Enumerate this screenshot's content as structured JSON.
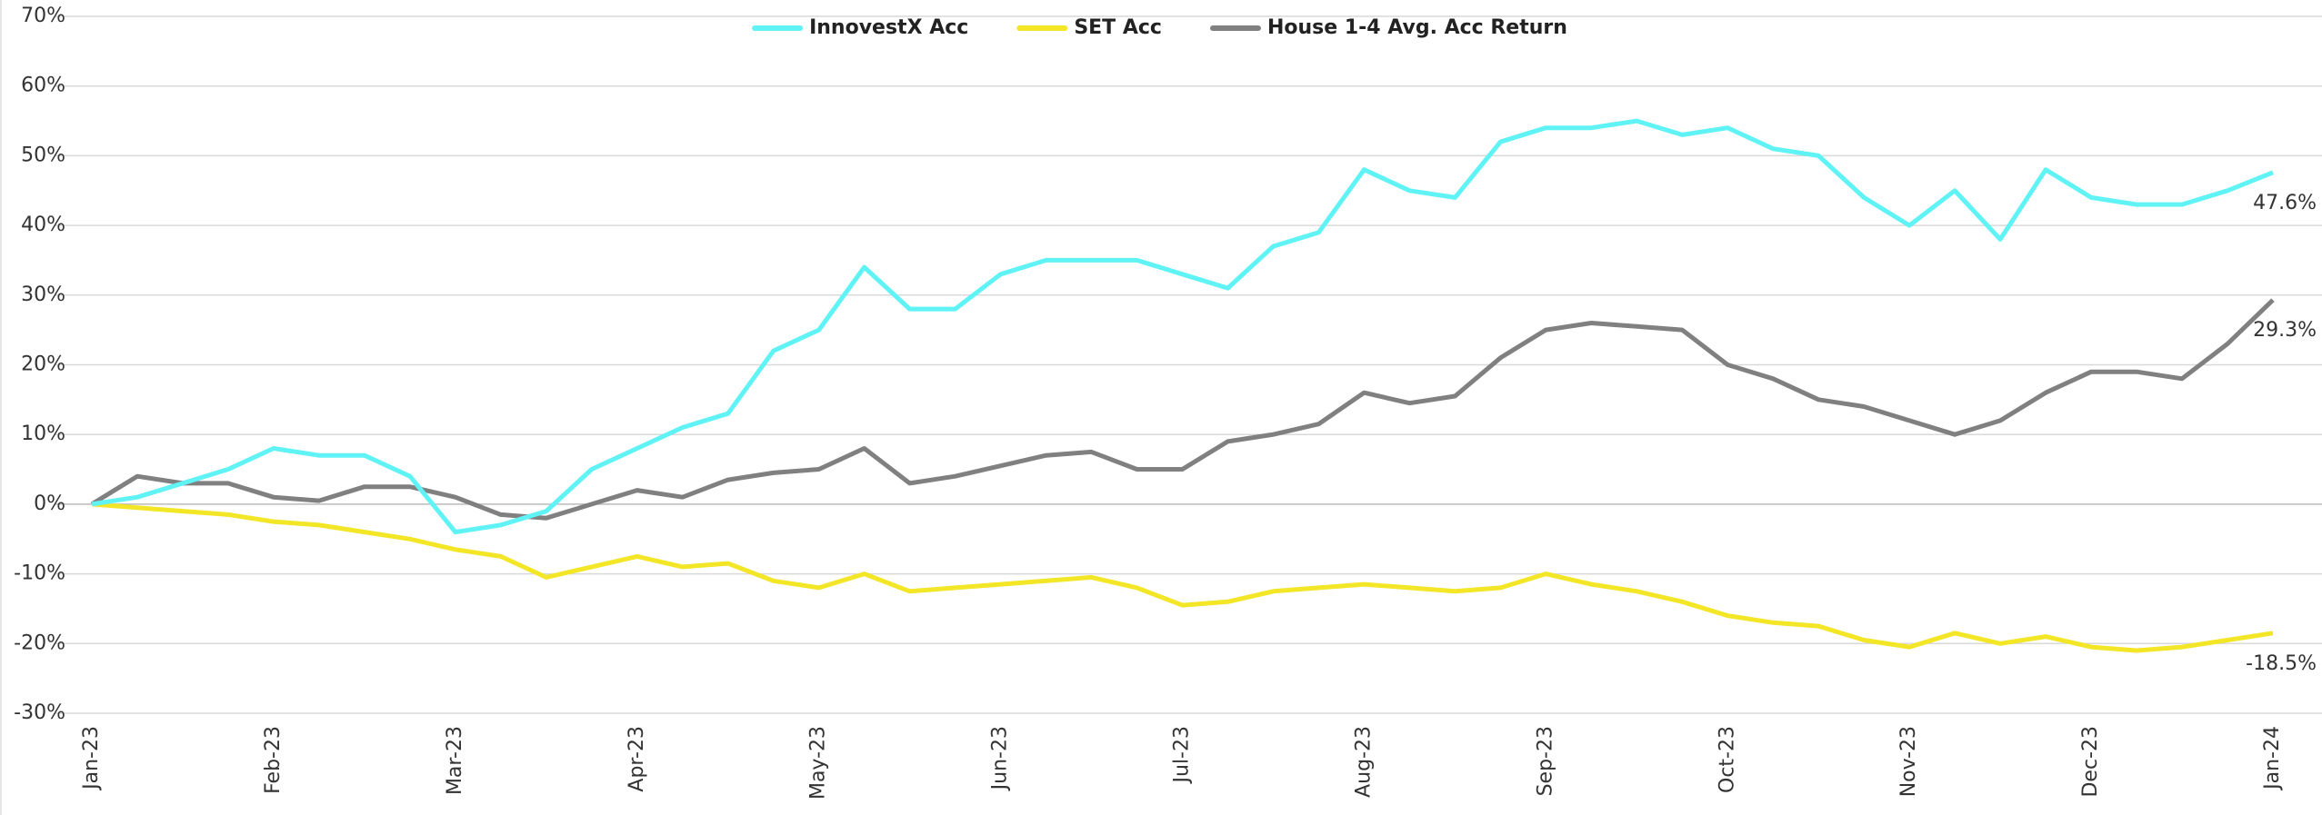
{
  "chart_data": {
    "type": "line",
    "categories": [
      "Jan-23",
      null,
      null,
      null,
      "Feb-23",
      null,
      null,
      null,
      "Mar-23",
      null,
      null,
      null,
      "Apr-23",
      null,
      null,
      null,
      "May-23",
      null,
      null,
      null,
      "Jun-23",
      null,
      null,
      null,
      "Jul-23",
      null,
      null,
      null,
      "Aug-23",
      null,
      null,
      null,
      "Sep-23",
      null,
      null,
      null,
      "Oct-23",
      null,
      null,
      null,
      "Nov-23",
      null,
      null,
      null,
      "Dec-23",
      null,
      null,
      null,
      "Jan-24"
    ],
    "series": [
      {
        "name": "InnovestX Acc",
        "color": "#5ff3f5",
        "end_label": "47.6%",
        "values": [
          0,
          1,
          3,
          5,
          8,
          7,
          7,
          4,
          -4,
          -3,
          -1,
          5,
          8,
          11,
          13,
          22,
          25,
          34,
          28,
          28,
          33,
          35,
          35,
          35,
          33,
          31,
          37,
          39,
          48,
          45,
          44,
          52,
          54,
          54,
          55,
          53,
          54,
          51,
          50,
          44,
          40,
          45,
          38,
          48,
          44,
          43,
          43,
          45,
          47.6
        ]
      },
      {
        "name": "SET Acc",
        "color": "#f3e626",
        "end_label": "-18.5%",
        "values": [
          0,
          -0.5,
          -1,
          -1.5,
          -2.5,
          -3,
          -4,
          -5,
          -6.5,
          -7.5,
          -10.5,
          -9,
          -7.5,
          -9,
          -8.5,
          -11,
          -12,
          -10,
          -12.5,
          -12,
          -11.5,
          -11,
          -10.5,
          -12,
          -14.5,
          -14,
          -12.5,
          -12,
          -11.5,
          -12,
          -12.5,
          -12,
          -10,
          -11.5,
          -12.5,
          -14,
          -16,
          -17,
          -17.5,
          -19.5,
          -20.5,
          -18.5,
          -20,
          -19,
          -20.5,
          -21,
          -20.5,
          -19.5,
          -18.5
        ]
      },
      {
        "name": "House 1-4 Avg. Acc Return",
        "color": "#808080",
        "end_label": "29.3%",
        "values": [
          0,
          4,
          3,
          3,
          1,
          0.5,
          2.5,
          2.5,
          1,
          -1.5,
          -2,
          0,
          2,
          1,
          3.5,
          4.5,
          5,
          8,
          3,
          4,
          5.5,
          7,
          7.5,
          5,
          5,
          9,
          10,
          11.5,
          16,
          14.5,
          15.5,
          21,
          25,
          26,
          25.5,
          25,
          20,
          18,
          15,
          14,
          12,
          10,
          12,
          16,
          19,
          19,
          18,
          23,
          29.3
        ]
      }
    ],
    "ylim": [
      -30,
      70
    ],
    "yticks": [
      {
        "value": -30,
        "label": "-30%"
      },
      {
        "value": -20,
        "label": "-20%"
      },
      {
        "value": -10,
        "label": "-10%"
      },
      {
        "value": 0,
        "label": "0%"
      },
      {
        "value": 10,
        "label": "10%"
      },
      {
        "value": 20,
        "label": "20%"
      },
      {
        "value": 30,
        "label": "30%"
      },
      {
        "value": 40,
        "label": "40%"
      },
      {
        "value": 50,
        "label": "50%"
      },
      {
        "value": 60,
        "label": "60%"
      },
      {
        "value": 70,
        "label": "70%"
      }
    ],
    "grid": true,
    "legend": "top"
  }
}
